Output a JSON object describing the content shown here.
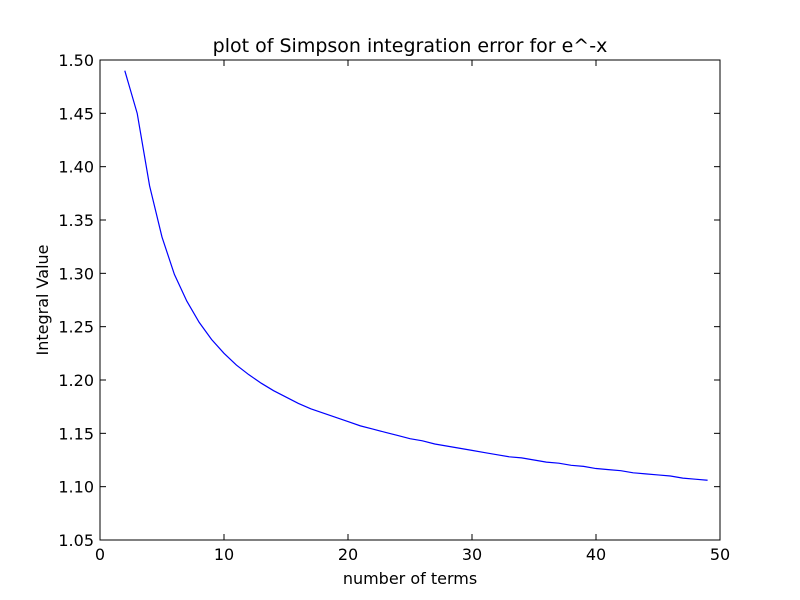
{
  "chart_data": {
    "type": "line",
    "title": "plot of Simpson integration error for e^-x",
    "xlabel": "number of terms",
    "ylabel": "Integral Value",
    "xlim": [
      0,
      50
    ],
    "ylim": [
      1.05,
      1.5
    ],
    "xticks": [
      0,
      10,
      20,
      30,
      40,
      50
    ],
    "xtick_labels": [
      "0",
      "10",
      "20",
      "30",
      "40",
      "50"
    ],
    "yticks": [
      1.05,
      1.1,
      1.15,
      1.2,
      1.25,
      1.3,
      1.35,
      1.4,
      1.45,
      1.5
    ],
    "ytick_labels": [
      "1.05",
      "1.10",
      "1.15",
      "1.20",
      "1.25",
      "1.30",
      "1.35",
      "1.40",
      "1.45",
      "1.50"
    ],
    "grid": false,
    "series": [
      {
        "color": "#0000ff",
        "x": [
          2,
          3,
          4,
          5,
          6,
          7,
          8,
          9,
          10,
          11,
          12,
          13,
          14,
          15,
          16,
          17,
          18,
          19,
          20,
          21,
          22,
          23,
          24,
          25,
          26,
          27,
          28,
          29,
          30,
          31,
          32,
          33,
          34,
          35,
          36,
          37,
          38,
          39,
          40,
          41,
          42,
          43,
          44,
          45,
          46,
          47,
          48,
          49
        ],
        "y": [
          1.49,
          1.45,
          1.382,
          1.334,
          1.299,
          1.274,
          1.254,
          1.238,
          1.225,
          1.214,
          1.205,
          1.197,
          1.19,
          1.184,
          1.178,
          1.173,
          1.169,
          1.165,
          1.161,
          1.157,
          1.154,
          1.151,
          1.148,
          1.145,
          1.143,
          1.14,
          1.138,
          1.136,
          1.134,
          1.132,
          1.13,
          1.128,
          1.127,
          1.125,
          1.123,
          1.122,
          1.12,
          1.119,
          1.117,
          1.116,
          1.115,
          1.113,
          1.112,
          1.111,
          1.11,
          1.108,
          1.107,
          1.106
        ]
      }
    ]
  }
}
